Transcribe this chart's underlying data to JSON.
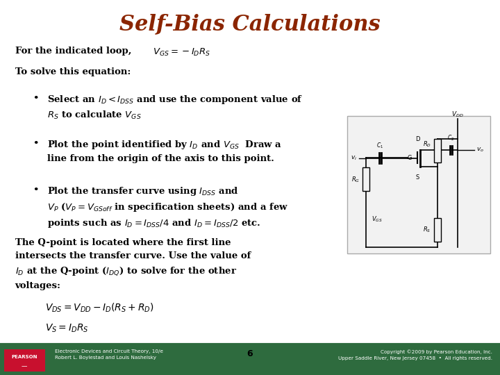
{
  "title": "Self-Bias Calculations",
  "title_color": "#8B2500",
  "title_fontsize": 22,
  "bg_color": "#FFFFFF",
  "footer_green_color": "#2E6B3E",
  "page_number": "6",
  "footer_left": "Electronic Devices and Circuit Theory, 10/e\nRobert L. Boylestad and Louis Nashelsky",
  "footer_right": "Copyright ©2009 by Pearson Education, Inc.\nUpper Saddle River, New Jersey 07458  •  All rights reserved.",
  "pearson_box_color": "#C8102E"
}
